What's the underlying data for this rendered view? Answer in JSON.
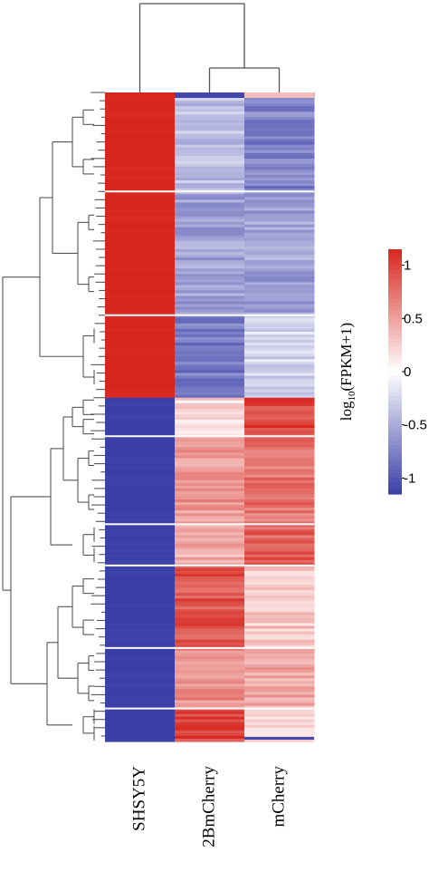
{
  "chart_data": {
    "type": "heatmap",
    "columns": [
      "SHSY5Y",
      "2BmCherry",
      "mCherry"
    ],
    "column_order_note": "",
    "colorbar": {
      "label_main": "log",
      "label_sub": "10",
      "label_rest": "(FPKM+1)",
      "ticks": [
        "1",
        "0.5",
        "0",
        "-0.5",
        "-1"
      ],
      "tick_values": [
        1,
        0.5,
        0,
        -0.5,
        -1
      ],
      "range": [
        -1.15,
        1.15
      ],
      "colors": {
        "low": "#3a3fa8",
        "mid": "#ffffff",
        "high": "#d7261e"
      }
    },
    "row_clusters": [
      {
        "rows": 36,
        "values": [
          1.15,
          -0.38,
          -0.75
        ]
      },
      {
        "rows": 45,
        "values": [
          1.15,
          -0.55,
          -0.55
        ]
      },
      {
        "rows": 30,
        "values": [
          1.15,
          -0.8,
          -0.25
        ]
      },
      {
        "rows": 14,
        "values": [
          -1.15,
          0.2,
          1.0
        ]
      },
      {
        "rows": 32,
        "values": [
          -1.15,
          0.55,
          0.75
        ]
      },
      {
        "rows": 15,
        "values": [
          -1.15,
          0.45,
          0.85
        ]
      },
      {
        "rows": 30,
        "values": [
          -1.15,
          0.9,
          0.3
        ]
      },
      {
        "rows": 22,
        "values": [
          -1.15,
          0.6,
          0.45
        ]
      },
      {
        "rows": 12,
        "values": [
          -1.15,
          1.0,
          0.15
        ]
      }
    ]
  }
}
